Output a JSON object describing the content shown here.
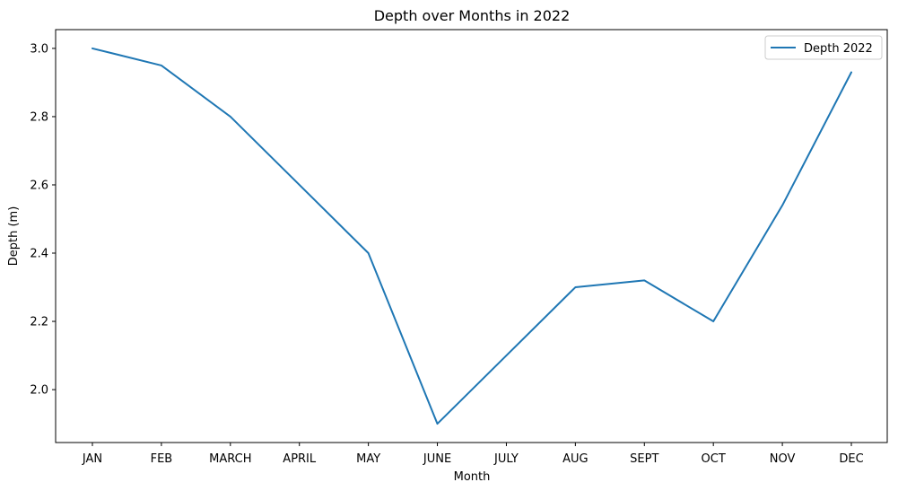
{
  "chart_data": {
    "type": "line",
    "title": "Depth over Months in 2022",
    "xlabel": "Month",
    "ylabel": "Depth (m)",
    "categories": [
      "JAN",
      "FEB",
      "MARCH",
      "APRIL",
      "MAY",
      "JUNE",
      "JULY",
      "AUG",
      "SEPT",
      "OCT",
      "NOV",
      "DEC"
    ],
    "series": [
      {
        "name": "Depth 2022",
        "color": "#1f77b4",
        "values": [
          3.0,
          2.95,
          2.8,
          2.6,
          2.4,
          1.9,
          2.1,
          2.3,
          2.32,
          2.2,
          2.54,
          2.93
        ]
      }
    ],
    "ylim": [
      1.845,
      3.055
    ],
    "yticks": [
      2.0,
      2.2,
      2.4,
      2.6,
      2.8,
      3.0
    ],
    "ytick_labels": [
      "2.0",
      "2.2",
      "2.4",
      "2.6",
      "2.8",
      "3.0"
    ],
    "grid": false,
    "legend_position": "upper right"
  }
}
